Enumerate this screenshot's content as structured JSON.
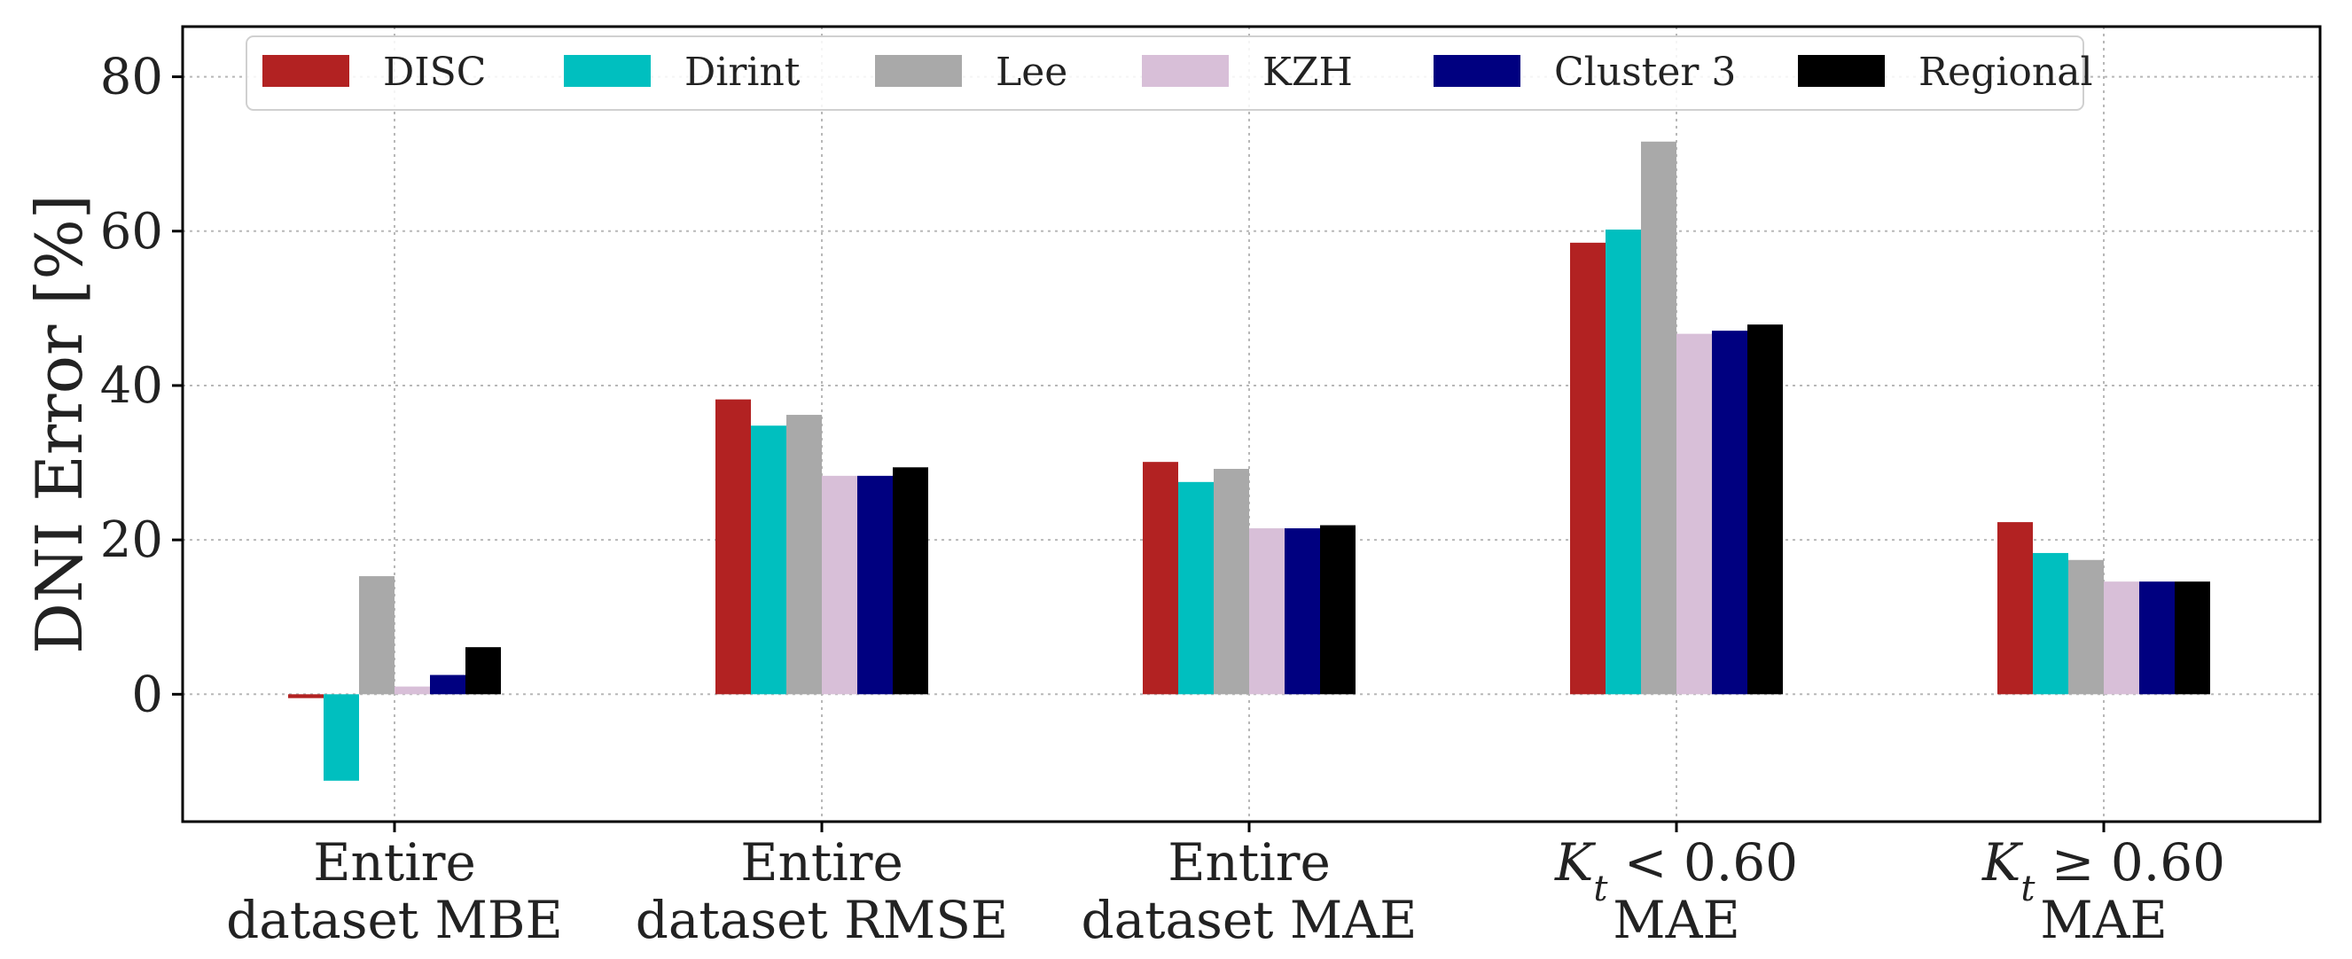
{
  "chart_data": {
    "type": "bar",
    "title": "",
    "xlabel": "",
    "ylabel": "DNI Error [%]",
    "ylim": [
      -16.5,
      86.5
    ],
    "yticks": [
      "0",
      "20",
      "40",
      "60",
      "80"
    ],
    "grid": true,
    "legend_position": "top",
    "categories": [
      {
        "line1": "Entire",
        "line2": "dataset MBE"
      },
      {
        "line1": "Entire",
        "line2": "dataset RMSE"
      },
      {
        "line1": "Entire",
        "line2": "dataset MAE"
      },
      {
        "line1_var": "K",
        "line1_sub": "t",
        "line1_rest": " < 0.60",
        "line2": "MAE"
      },
      {
        "line1_var": "K",
        "line1_sub": "t",
        "line1_rest": " ≥ 0.60",
        "line2": "MAE"
      }
    ],
    "series": [
      {
        "name": "DISC",
        "color": "#b22222",
        "values": [
          -0.5,
          38.2,
          30.1,
          58.5,
          22.3
        ]
      },
      {
        "name": "Dirint",
        "color": "#00bfbf",
        "values": [
          -11.2,
          34.8,
          27.5,
          60.2,
          18.3
        ]
      },
      {
        "name": "Lee",
        "color": "#a9a9a9",
        "values": [
          15.3,
          36.2,
          29.2,
          71.6,
          17.4
        ]
      },
      {
        "name": "KZH",
        "color": "#d8bfd8",
        "values": [
          1.0,
          28.3,
          21.5,
          46.7,
          14.6
        ]
      },
      {
        "name": "Cluster 3",
        "color": "#000080",
        "values": [
          2.5,
          28.3,
          21.5,
          47.1,
          14.6
        ]
      },
      {
        "name": "Regional",
        "color": "#000000",
        "values": [
          6.1,
          29.4,
          21.9,
          47.9,
          14.6
        ]
      }
    ]
  }
}
